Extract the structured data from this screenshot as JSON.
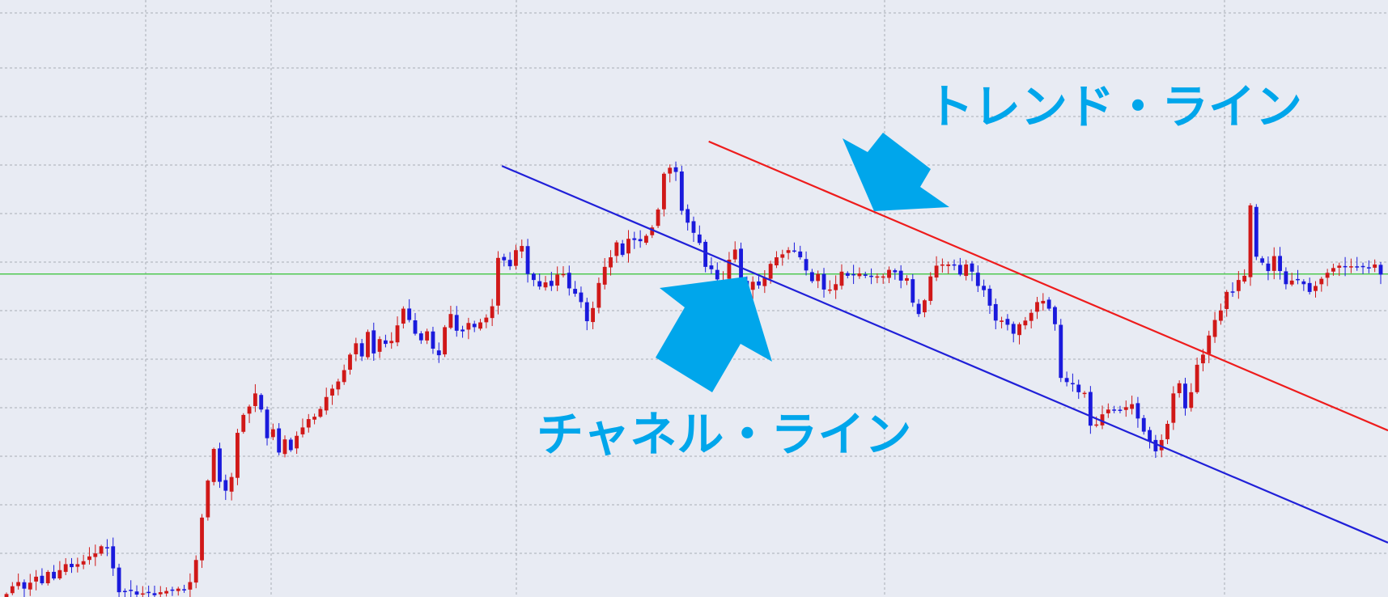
{
  "colors": {
    "background": "#e8ebf3",
    "grid": "#a9adb6",
    "bull_candle": "#d01818",
    "bear_candle": "#1a1adc",
    "trend_line": "#ee1c1c",
    "channel_line": "#2020d8",
    "level_line": "#33c233",
    "annotation": "#00a6eb"
  },
  "annotations": {
    "trend_label": "トレンド・ライン",
    "channel_label": "チャネル・ライン"
  },
  "chart_data": {
    "type": "candlestick",
    "grid": true,
    "ylim": [
      0,
      100
    ],
    "description_values_scale": "relative price (0 = bottom of chart, 100 = top)",
    "horizontal_level": 54.1,
    "trend_line": {
      "from": {
        "x": 0.5106,
        "y": 76.3
      },
      "to": {
        "x": 1.0,
        "y": 27.9
      }
    },
    "channel_line": {
      "from": {
        "x": 0.3616,
        "y": 72.2
      },
      "to": {
        "x": 1.0,
        "y": 9.1
      }
    },
    "closes": [
      0.5,
      1.8,
      2.5,
      1.4,
      2.4,
      3.4,
      2.3,
      4.2,
      3.1,
      4.5,
      5.5,
      5.0,
      5.5,
      6.0,
      6.8,
      7.3,
      8.5,
      8.2,
      4.8,
      0.8,
      1.0,
      1.2,
      0.4,
      0.6,
      0.8,
      0.3,
      0.8,
      1.0,
      1.2,
      1.4,
      1.2,
      2.5,
      6.2,
      13.3,
      19.5,
      24.8,
      19.3,
      17.8,
      20.1,
      27.5,
      30.5,
      31.9,
      34.1,
      31.4,
      26.6,
      28.1,
      24.2,
      26.4,
      24.6,
      27.0,
      28.4,
      29.8,
      30.2,
      31.5,
      33.5,
      34.9,
      36.1,
      38.0,
      40.6,
      42.5,
      40.3,
      44.4,
      40.8,
      43.2,
      42.4,
      42.9,
      45.5,
      48.3,
      46.4,
      44.1,
      43.0,
      44.5,
      41.6,
      40.5,
      45.2,
      47.4,
      44.6,
      44.5,
      45.9,
      45.2,
      46.0,
      46.8,
      48.7,
      56.8,
      56.4,
      55.4,
      58.1,
      58.8,
      54.1,
      53.1,
      52.0,
      52.7,
      52.1,
      54.0,
      54.1,
      51.7,
      50.8,
      49.4,
      46.2,
      48.4,
      52.6,
      55.3,
      56.9,
      59.4,
      57.3,
      60.0,
      59.8,
      59.6,
      60.5,
      61.9,
      64.9,
      70.9,
      71.9,
      71.2,
      64.7,
      62.7,
      61.0,
      59.3,
      55.3,
      54.9,
      53.2,
      53.0,
      56.5,
      58.2,
      52.9,
      51.3,
      52.8,
      52.2,
      53.5,
      55.8,
      56.9,
      57.4,
      58.1,
      58.0,
      56.9,
      54.7,
      52.9,
      54.1,
      51.5,
      51.5,
      52.4,
      54.5,
      53.8,
      54.0,
      54.2,
      53.8,
      53.6,
      53.7,
      53.7,
      54.8,
      54.4,
      53.0,
      53.4,
      49.3,
      47.4,
      49.7,
      53.7,
      55.5,
      55.7,
      55.7,
      55.7,
      54.0,
      55.7,
      54.5,
      52.1,
      51.4,
      48.8,
      46.3,
      46.3,
      45.6,
      44.1,
      45.7,
      46.3,
      47.6,
      49.4,
      49.6,
      48.3,
      45.7,
      36.7,
      36.0,
      35.7,
      34.3,
      34.2,
      28.7,
      28.9,
      30.6,
      31.4,
      31.3,
      31.2,
      31.8,
      32.3,
      29.9,
      27.7,
      26.1,
      24.4,
      26.3,
      29.0,
      34.1,
      35.8,
      31.6,
      34.3,
      38.9,
      40.6,
      43.8,
      46.4,
      48.0,
      51.1,
      51.0,
      53.1,
      53.8,
      65.6,
      57.0,
      56.0,
      54.6,
      57.1,
      54.6,
      52.4,
      53.0,
      53.1,
      52.4,
      51.1,
      52.1,
      53.3,
      54.3,
      55.1,
      55.5,
      55.3,
      55.4,
      55.3,
      55.4,
      55.1,
      55.7,
      54.0
    ]
  }
}
